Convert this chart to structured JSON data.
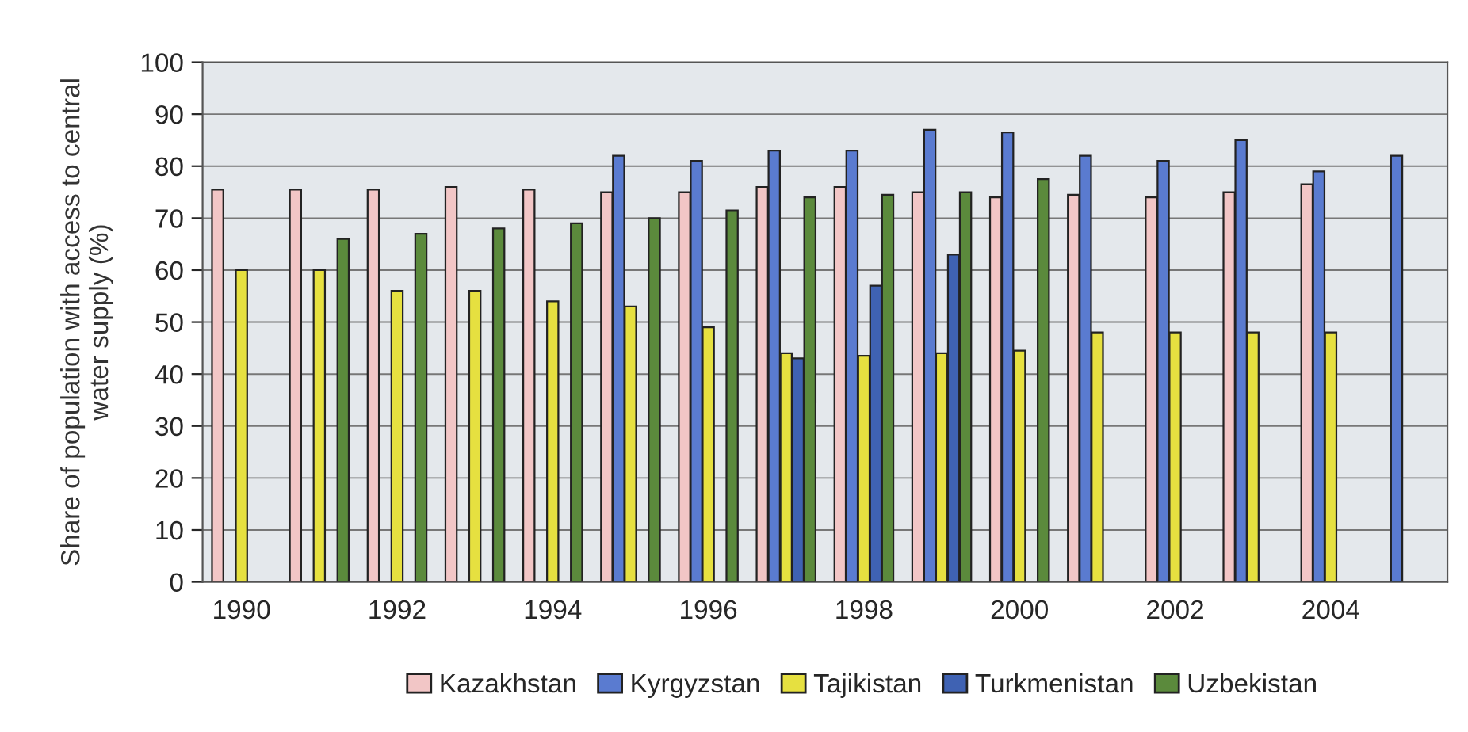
{
  "chart_data": {
    "type": "bar",
    "ylabel": "Share of population with access to central water supply (%)",
    "categories": [
      "1990",
      null,
      "1992",
      null,
      "1994",
      null,
      "1996",
      null,
      "1998",
      null,
      "2000",
      null,
      "2002",
      null,
      "2004",
      null
    ],
    "ylim": [
      0,
      100
    ],
    "yticks": [
      0,
      10,
      20,
      30,
      40,
      50,
      60,
      70,
      80,
      90,
      100
    ],
    "grid": "y",
    "legend": "bottom",
    "series": [
      {
        "name": "Kazakhstan",
        "color": "#f2c6c6",
        "values": [
          75.5,
          75.5,
          75.5,
          76,
          75.5,
          75,
          75,
          76,
          76,
          75,
          74,
          74.5,
          74,
          75,
          76.5,
          null
        ]
      },
      {
        "name": "Kyrgyzstan",
        "color": "#5a7bd0",
        "values": [
          null,
          null,
          null,
          null,
          null,
          82,
          81,
          83,
          83,
          87,
          86.5,
          82,
          81,
          85,
          79,
          82
        ]
      },
      {
        "name": "Tajikistan",
        "color": "#e6e040",
        "values": [
          60,
          60,
          56,
          56,
          54,
          53,
          49,
          44,
          43.5,
          44,
          44.5,
          48,
          48,
          48,
          48,
          null
        ]
      },
      {
        "name": "Turkmenistan",
        "color": "#3f62b3",
        "values": [
          null,
          null,
          null,
          null,
          null,
          null,
          null,
          43,
          57,
          63,
          null,
          null,
          null,
          null,
          null,
          null
        ]
      },
      {
        "name": "Uzbekistan",
        "color": "#5b8a3c",
        "values": [
          null,
          66,
          67,
          68,
          69,
          70,
          71.5,
          74,
          74.5,
          75,
          77.5,
          null,
          null,
          null,
          null,
          null
        ]
      }
    ]
  }
}
